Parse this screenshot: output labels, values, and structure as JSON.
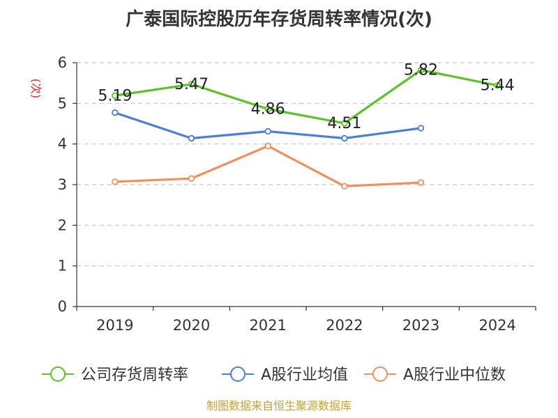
{
  "chart_data": {
    "type": "line",
    "title": "广泰国际控股历年存货周转率情况(次)",
    "ylabel": "(次)",
    "categories": [
      "2019",
      "2020",
      "2021",
      "2022",
      "2023",
      "2024"
    ],
    "ylim": [
      0,
      6
    ],
    "yticks": [
      "0",
      "1",
      "2",
      "3",
      "4",
      "5",
      "6"
    ],
    "grid": true,
    "legend_position": "bottom",
    "series": [
      {
        "name": "公司存货周转率",
        "color": "#5cc12a",
        "values": [
          5.19,
          5.47,
          4.86,
          4.51,
          5.82,
          5.44
        ],
        "labels": [
          "5.19",
          "5.47",
          "4.86",
          "4.51",
          "5.82",
          "5.44"
        ]
      },
      {
        "name": "A股行业均值",
        "color": "#4a7fd6",
        "values": [
          4.77,
          4.14,
          4.31,
          4.14,
          4.39,
          null
        ]
      },
      {
        "name": "A股行业中位数",
        "color": "#f0905c",
        "values": [
          3.07,
          3.15,
          3.95,
          2.96,
          3.05,
          null
        ]
      }
    ]
  },
  "source": "制图数据来自恒生聚源数据库"
}
